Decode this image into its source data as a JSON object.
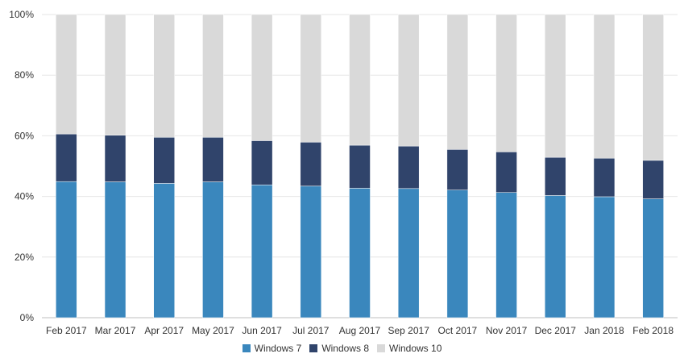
{
  "chart_data": {
    "type": "bar",
    "stacked": true,
    "categories": [
      "Feb 2017",
      "Mar 2017",
      "Apr 2017",
      "May 2017",
      "Jun 2017",
      "Jul 2017",
      "Aug 2017",
      "Sep 2017",
      "Oct 2017",
      "Nov 2017",
      "Dec 2017",
      "Jan 2018",
      "Feb 2018"
    ],
    "series": [
      {
        "name": "Windows 7",
        "color": "#3a87bd",
        "values": [
          44.9,
          44.8,
          44.3,
          44.8,
          43.8,
          43.4,
          42.7,
          42.6,
          42.1,
          41.3,
          40.3,
          39.9,
          39.2
        ]
      },
      {
        "name": "Windows 8",
        "color": "#30446b",
        "values": [
          15.7,
          15.4,
          15.2,
          14.7,
          14.6,
          14.5,
          14.2,
          14.0,
          13.4,
          13.4,
          12.6,
          12.7,
          12.7
        ]
      },
      {
        "name": "Windows 10",
        "color": "#d9d9d9",
        "values": [
          39.4,
          39.8,
          40.5,
          40.5,
          41.6,
          42.1,
          43.1,
          43.4,
          44.5,
          45.3,
          47.1,
          47.4,
          48.1
        ]
      }
    ],
    "ylim": [
      0,
      100
    ],
    "yticks": [
      "0%",
      "20%",
      "40%",
      "60%",
      "80%",
      "100%"
    ],
    "grid": true,
    "legend_position": "bottom",
    "title": "",
    "xlabel": "",
    "ylabel": ""
  }
}
